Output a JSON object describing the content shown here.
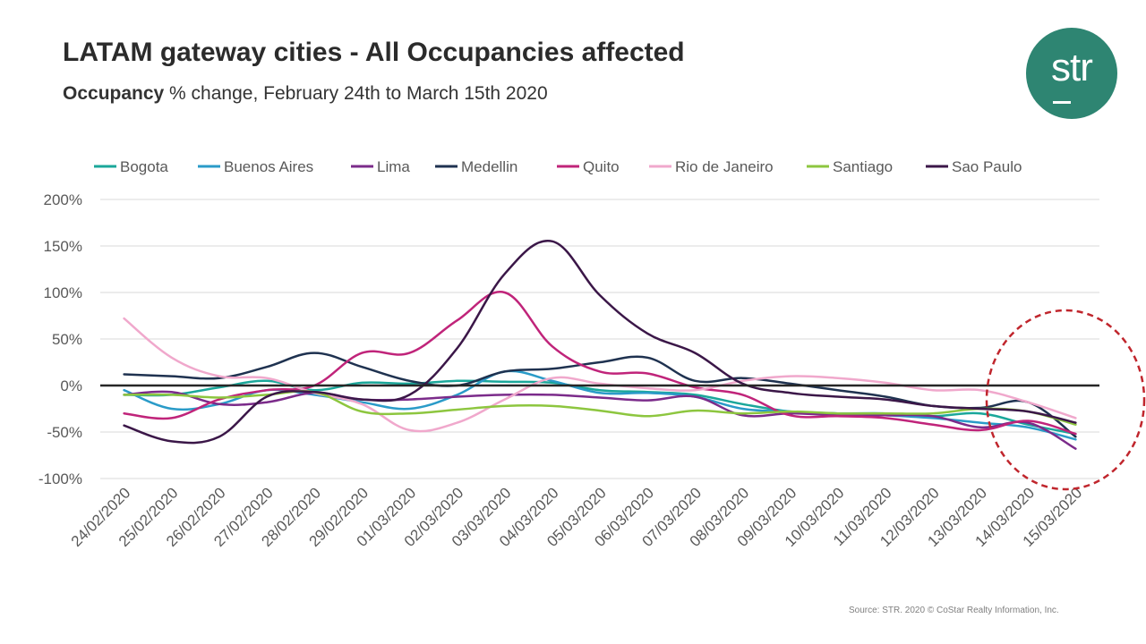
{
  "title": "LATAM gateway cities - All Occupancies affected",
  "subtitle_bold": "Occupancy",
  "subtitle_rest": " % change, February 24th to March 15th  2020",
  "logo_text": "str",
  "source": "Source: STR. 2020 © CoStar Realty Information, Inc.",
  "chart_data": {
    "type": "line",
    "ylim": [
      -100,
      200
    ],
    "y_ticks": [
      -100,
      -50,
      0,
      50,
      100,
      150,
      200
    ],
    "y_tick_labels": [
      "-100%",
      "-50%",
      "0%",
      "50%",
      "100%",
      "150%",
      "200%"
    ],
    "grid": true,
    "legend_position": "top",
    "categories": [
      "24/02/2020",
      "25/02/2020",
      "26/02/2020",
      "27/02/2020",
      "28/02/2020",
      "29/02/2020",
      "01/03/2020",
      "02/03/2020",
      "03/03/2020",
      "04/03/2020",
      "05/03/2020",
      "06/03/2020",
      "07/03/2020",
      "08/03/2020",
      "09/03/2020",
      "10/03/2020",
      "11/03/2020",
      "12/03/2020",
      "13/03/2020",
      "14/03/2020",
      "15/03/2020"
    ],
    "series": [
      {
        "name": "Bogota",
        "color": "#1aa79a",
        "values": [
          -10,
          -10,
          -2,
          5,
          -5,
          3,
          2,
          5,
          4,
          3,
          -5,
          -7,
          -10,
          -20,
          -28,
          -30,
          -30,
          -33,
          -30,
          -42,
          -52
        ]
      },
      {
        "name": "Buenos Aires",
        "color": "#2a9bc8",
        "values": [
          -5,
          -25,
          -20,
          -5,
          -10,
          -18,
          -25,
          -10,
          15,
          5,
          -8,
          -8,
          -12,
          -25,
          -28,
          -30,
          -32,
          -35,
          -40,
          -45,
          -58
        ]
      },
      {
        "name": "Lima",
        "color": "#7b2b8a",
        "values": [
          -10,
          -7,
          -20,
          -18,
          -8,
          -15,
          -15,
          -12,
          -10,
          -10,
          -13,
          -16,
          -12,
          -32,
          -30,
          -32,
          -32,
          -33,
          -45,
          -40,
          -68
        ]
      },
      {
        "name": "Medellin",
        "color": "#1f3250",
        "values": [
          12,
          10,
          8,
          20,
          35,
          20,
          5,
          0,
          15,
          18,
          25,
          30,
          5,
          8,
          2,
          -5,
          -12,
          -22,
          -24,
          -18,
          -55
        ]
      },
      {
        "name": "Quito",
        "color": "#c0247a",
        "values": [
          -30,
          -35,
          -15,
          -5,
          0,
          35,
          35,
          70,
          100,
          42,
          15,
          13,
          -2,
          -10,
          -32,
          -33,
          -35,
          -42,
          -48,
          -38,
          -52
        ]
      },
      {
        "name": "Rio de Janeiro",
        "color": "#f0a8cc",
        "values": [
          72,
          30,
          10,
          8,
          -8,
          -20,
          -48,
          -40,
          -15,
          8,
          2,
          -3,
          -5,
          5,
          10,
          8,
          3,
          -5,
          -5,
          -18,
          -35
        ]
      },
      {
        "name": "Santiago",
        "color": "#8dc63f",
        "values": [
          -10,
          -10,
          -13,
          -10,
          -7,
          -28,
          -30,
          -26,
          -22,
          -22,
          -27,
          -33,
          -27,
          -30,
          -28,
          -30,
          -30,
          -30,
          -25,
          -28,
          -42
        ]
      },
      {
        "name": "Sao Paulo",
        "color": "#3b1748",
        "values": [
          -43,
          -60,
          -55,
          -12,
          -7,
          -15,
          -10,
          40,
          120,
          155,
          97,
          56,
          35,
          2,
          -8,
          -12,
          -15,
          -22,
          -25,
          -28,
          -40
        ]
      }
    ]
  }
}
